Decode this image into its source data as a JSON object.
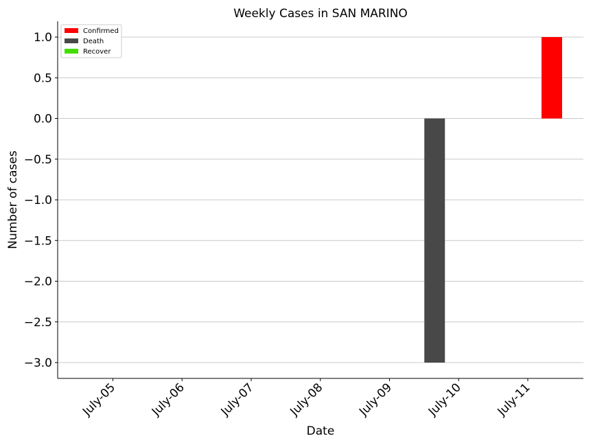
{
  "chart_data": {
    "type": "bar",
    "title": "Weekly Cases in SAN MARINO",
    "xlabel": "Date",
    "ylabel": "Number of cases",
    "categories": [
      "July-05",
      "July-06",
      "July-07",
      "July-08",
      "July-09",
      "July-10",
      "July-11"
    ],
    "series": [
      {
        "name": "Confirmed",
        "color": "#ff0000",
        "values": [
          0,
          0,
          0,
          0,
          0,
          0,
          1
        ]
      },
      {
        "name": "Death",
        "color": "#484848",
        "values": [
          0,
          0,
          0,
          0,
          0,
          -3,
          0
        ]
      },
      {
        "name": "Recover",
        "color": "#44dd00",
        "values": [
          0,
          0,
          0,
          0,
          0,
          0,
          0
        ]
      }
    ],
    "yticks": [
      "1.0",
      "0.5",
      "0.0",
      "−0.5",
      "−1.0",
      "−1.5",
      "−2.0",
      "−2.5",
      "−3.0"
    ],
    "ylim": [
      -3.2,
      1.2
    ],
    "grid": "y",
    "legend": "top-left"
  }
}
